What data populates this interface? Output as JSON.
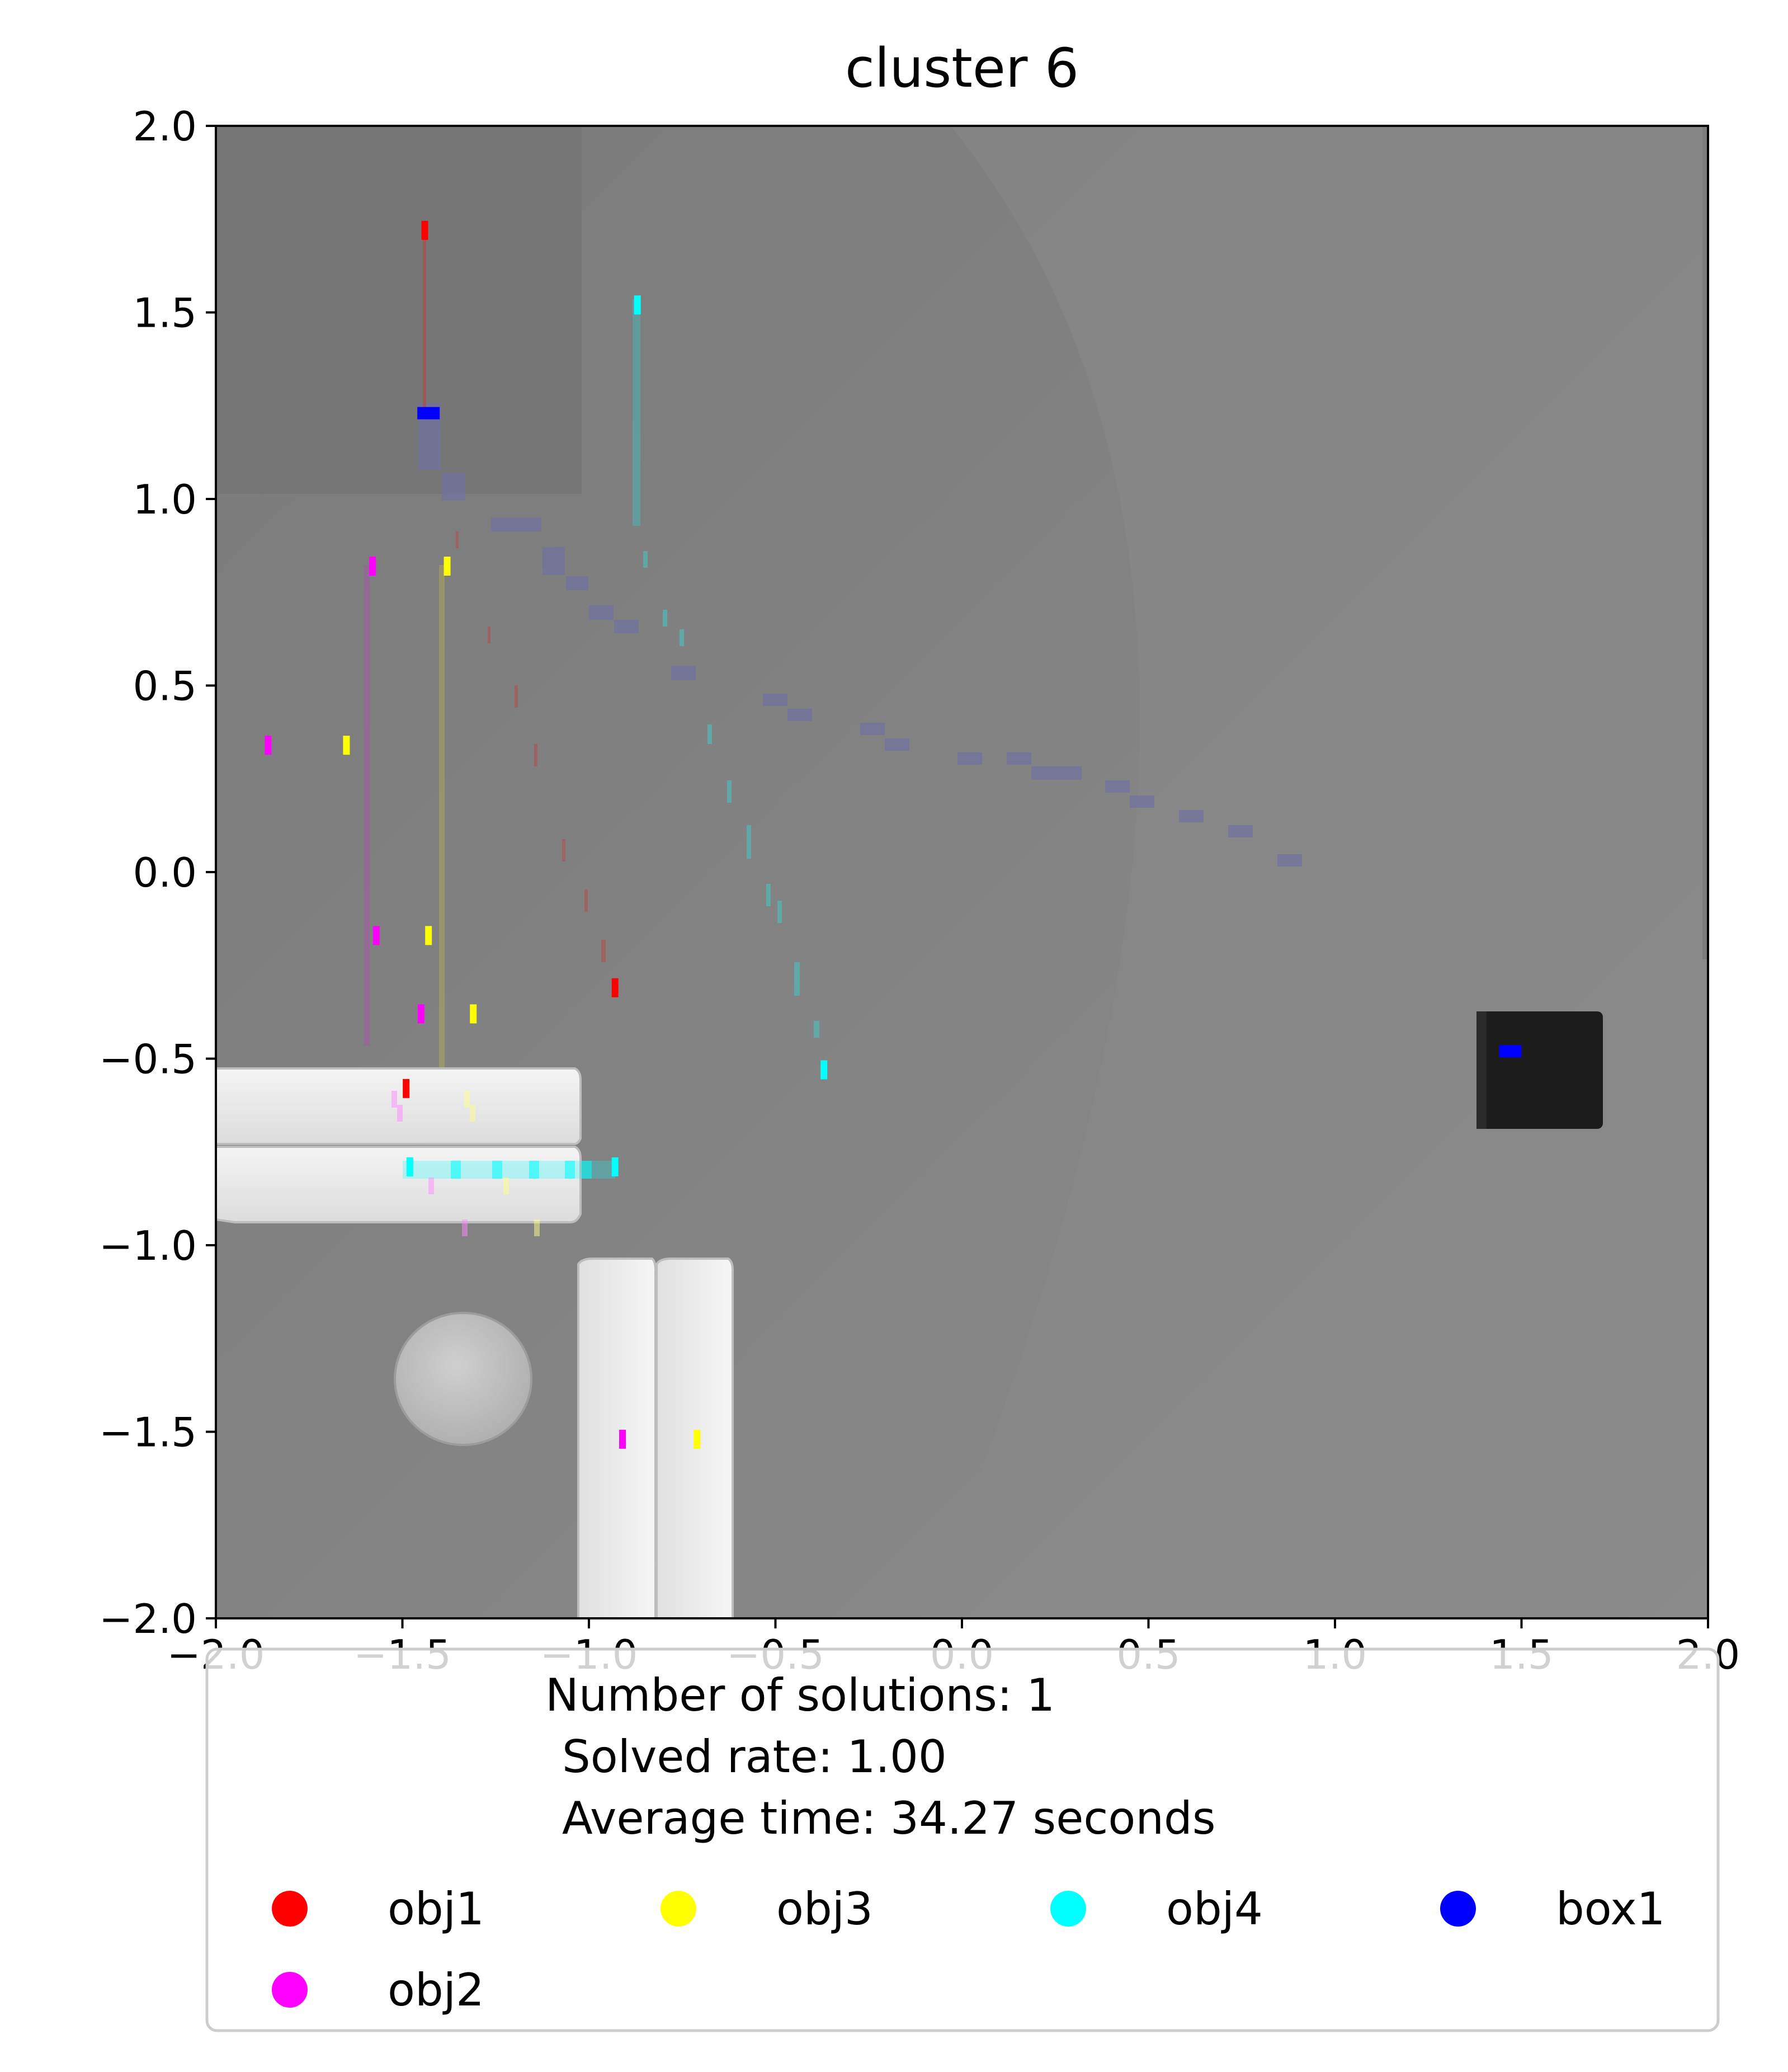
{
  "chart_data": {
    "type": "scatter",
    "title": "cluster 6",
    "xlabel": "",
    "ylabel": "",
    "xlim": [
      -2.0,
      2.0
    ],
    "ylim": [
      -2.0,
      2.0
    ],
    "x_ticks": [
      "−2.0",
      "−1.5",
      "−1.0",
      "−0.5",
      "0.0",
      "0.5",
      "1.0",
      "1.5",
      "2.0"
    ],
    "y_ticks": [
      "2.0",
      "1.5",
      "1.0",
      "0.5",
      "0.0",
      "−0.5",
      "−1.0",
      "−1.5",
      "−2.0"
    ],
    "grid": false,
    "legend_position": "bottom",
    "summary_lines": [
      "Number of solutions: 1",
      "Solved rate: 1.00",
      "Average time: 34.27 seconds"
    ],
    "series": [
      {
        "name": "obj1",
        "color": "#ff0000",
        "points": [
          [
            -1.44,
            1.72
          ],
          [
            -0.93,
            -0.31
          ],
          [
            -1.49,
            -0.58
          ]
        ]
      },
      {
        "name": "obj2",
        "color": "#ff00ff",
        "points": [
          [
            -1.58,
            0.82
          ],
          [
            -1.86,
            0.34
          ],
          [
            -1.57,
            -0.17
          ],
          [
            -1.45,
            -0.38
          ],
          [
            -0.91,
            -1.52
          ]
        ]
      },
      {
        "name": "obj3",
        "color": "#ffff00",
        "points": [
          [
            -1.38,
            0.82
          ],
          [
            -1.65,
            0.34
          ],
          [
            -1.43,
            -0.17
          ],
          [
            -1.31,
            -0.38
          ],
          [
            -0.71,
            -1.52
          ]
        ]
      },
      {
        "name": "obj4",
        "color": "#00ffff",
        "points": [
          [
            -0.87,
            1.52
          ],
          [
            -0.37,
            -0.53
          ],
          [
            -1.48,
            -0.79
          ],
          [
            -0.93,
            -0.79
          ]
        ]
      },
      {
        "name": "box1",
        "color": "#0000ff",
        "points": [
          [
            -1.43,
            1.23
          ],
          [
            1.47,
            -0.48
          ]
        ]
      }
    ]
  }
}
